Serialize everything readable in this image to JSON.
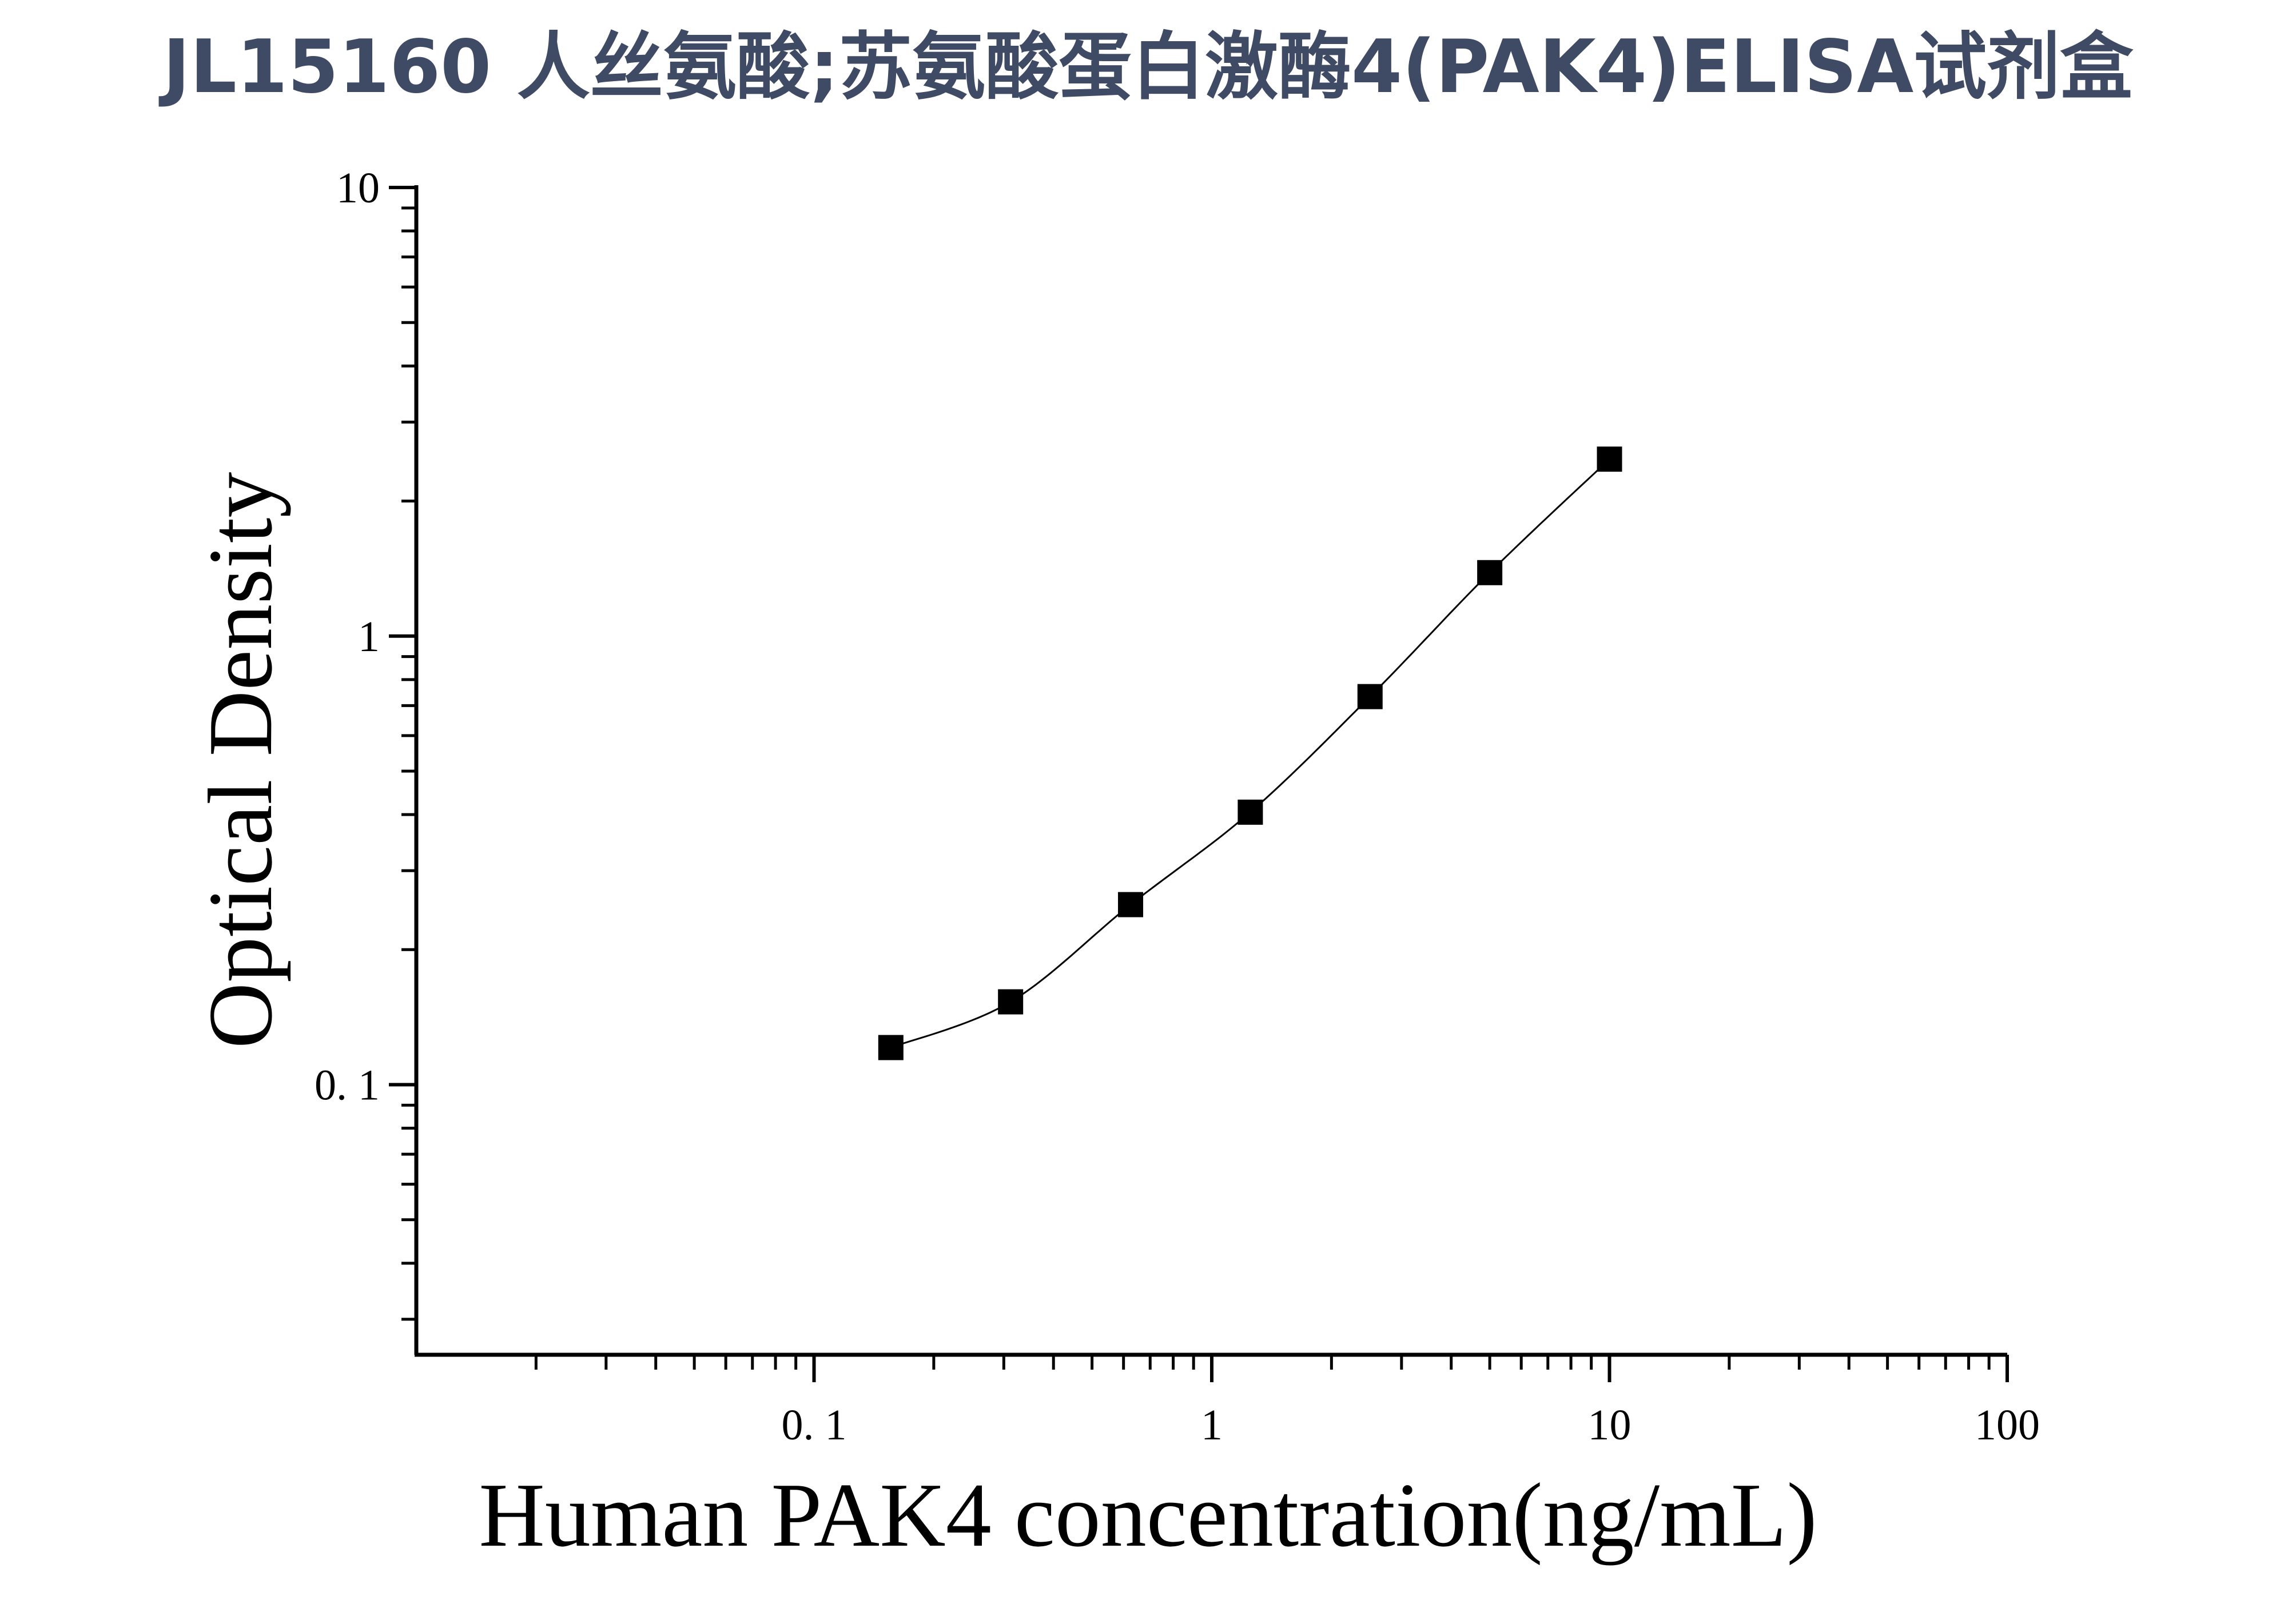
{
  "chart_data": {
    "type": "scatter",
    "title": "JL15160 人丝氨酸;苏氨酸蛋白激酶4(PAK4)ELISA试剂盒",
    "xlabel": "Human PAK4 concentration(ng/mL)",
    "ylabel": "Optical Density",
    "x_scale": "log",
    "y_scale": "log",
    "xlim": [
      0.01,
      100
    ],
    "ylim": [
      0.025,
      10
    ],
    "x_ticks": [
      {
        "value": 0.1,
        "label": "0. 1"
      },
      {
        "value": 1,
        "label": "1"
      },
      {
        "value": 10,
        "label": "10"
      },
      {
        "value": 100,
        "label": "100"
      }
    ],
    "y_ticks": [
      {
        "value": 0.1,
        "label": "0. 1"
      },
      {
        "value": 1,
        "label": "1"
      },
      {
        "value": 10,
        "label": "10"
      }
    ],
    "grid": false,
    "series": [
      {
        "marker": "square",
        "color": "#000000",
        "fit_line": true,
        "x": [
          0.156,
          0.312,
          0.625,
          1.25,
          2.5,
          5,
          10
        ],
        "y": [
          0.121,
          0.153,
          0.252,
          0.405,
          0.733,
          1.385,
          2.48
        ]
      }
    ]
  }
}
